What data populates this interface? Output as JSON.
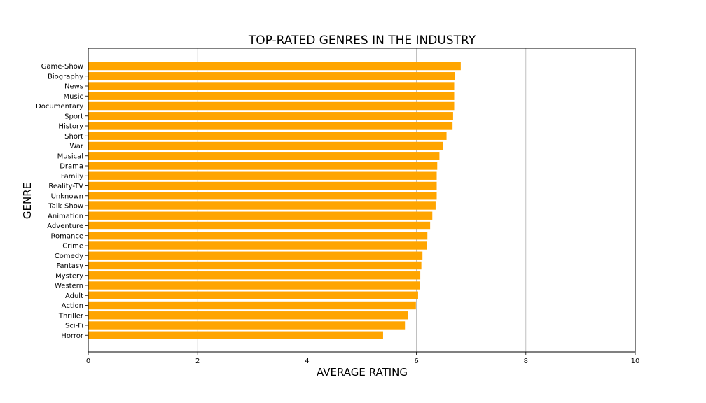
{
  "chart_data": {
    "type": "bar",
    "orientation": "horizontal",
    "title": "TOP-RATED GENRES IN THE INDUSTRY",
    "xlabel": "AVERAGE RATING",
    "ylabel": "GENRE",
    "xlim": [
      0,
      10
    ],
    "xticks": [
      "0",
      "2",
      "4",
      "6",
      "8",
      "10"
    ],
    "grid": "vertical",
    "bar_color": "#FFA500",
    "categories": [
      "Game-Show",
      "Biography",
      "News",
      "Music",
      "Documentary",
      "Sport",
      "History",
      "Short",
      "War",
      "Musical",
      "Drama",
      "Family",
      "Reality-TV",
      "Unknown",
      "Talk-Show",
      "Animation",
      "Adventure",
      "Romance",
      "Crime",
      "Comedy",
      "Fantasy",
      "Mystery",
      "Western",
      "Adult",
      "Action",
      "Thriller",
      "Sci-Fi",
      "Horror"
    ],
    "values": [
      6.81,
      6.7,
      6.69,
      6.69,
      6.69,
      6.67,
      6.66,
      6.55,
      6.49,
      6.42,
      6.38,
      6.37,
      6.37,
      6.37,
      6.35,
      6.29,
      6.25,
      6.2,
      6.19,
      6.11,
      6.09,
      6.07,
      6.06,
      6.03,
      5.99,
      5.85,
      5.79,
      5.39
    ]
  }
}
